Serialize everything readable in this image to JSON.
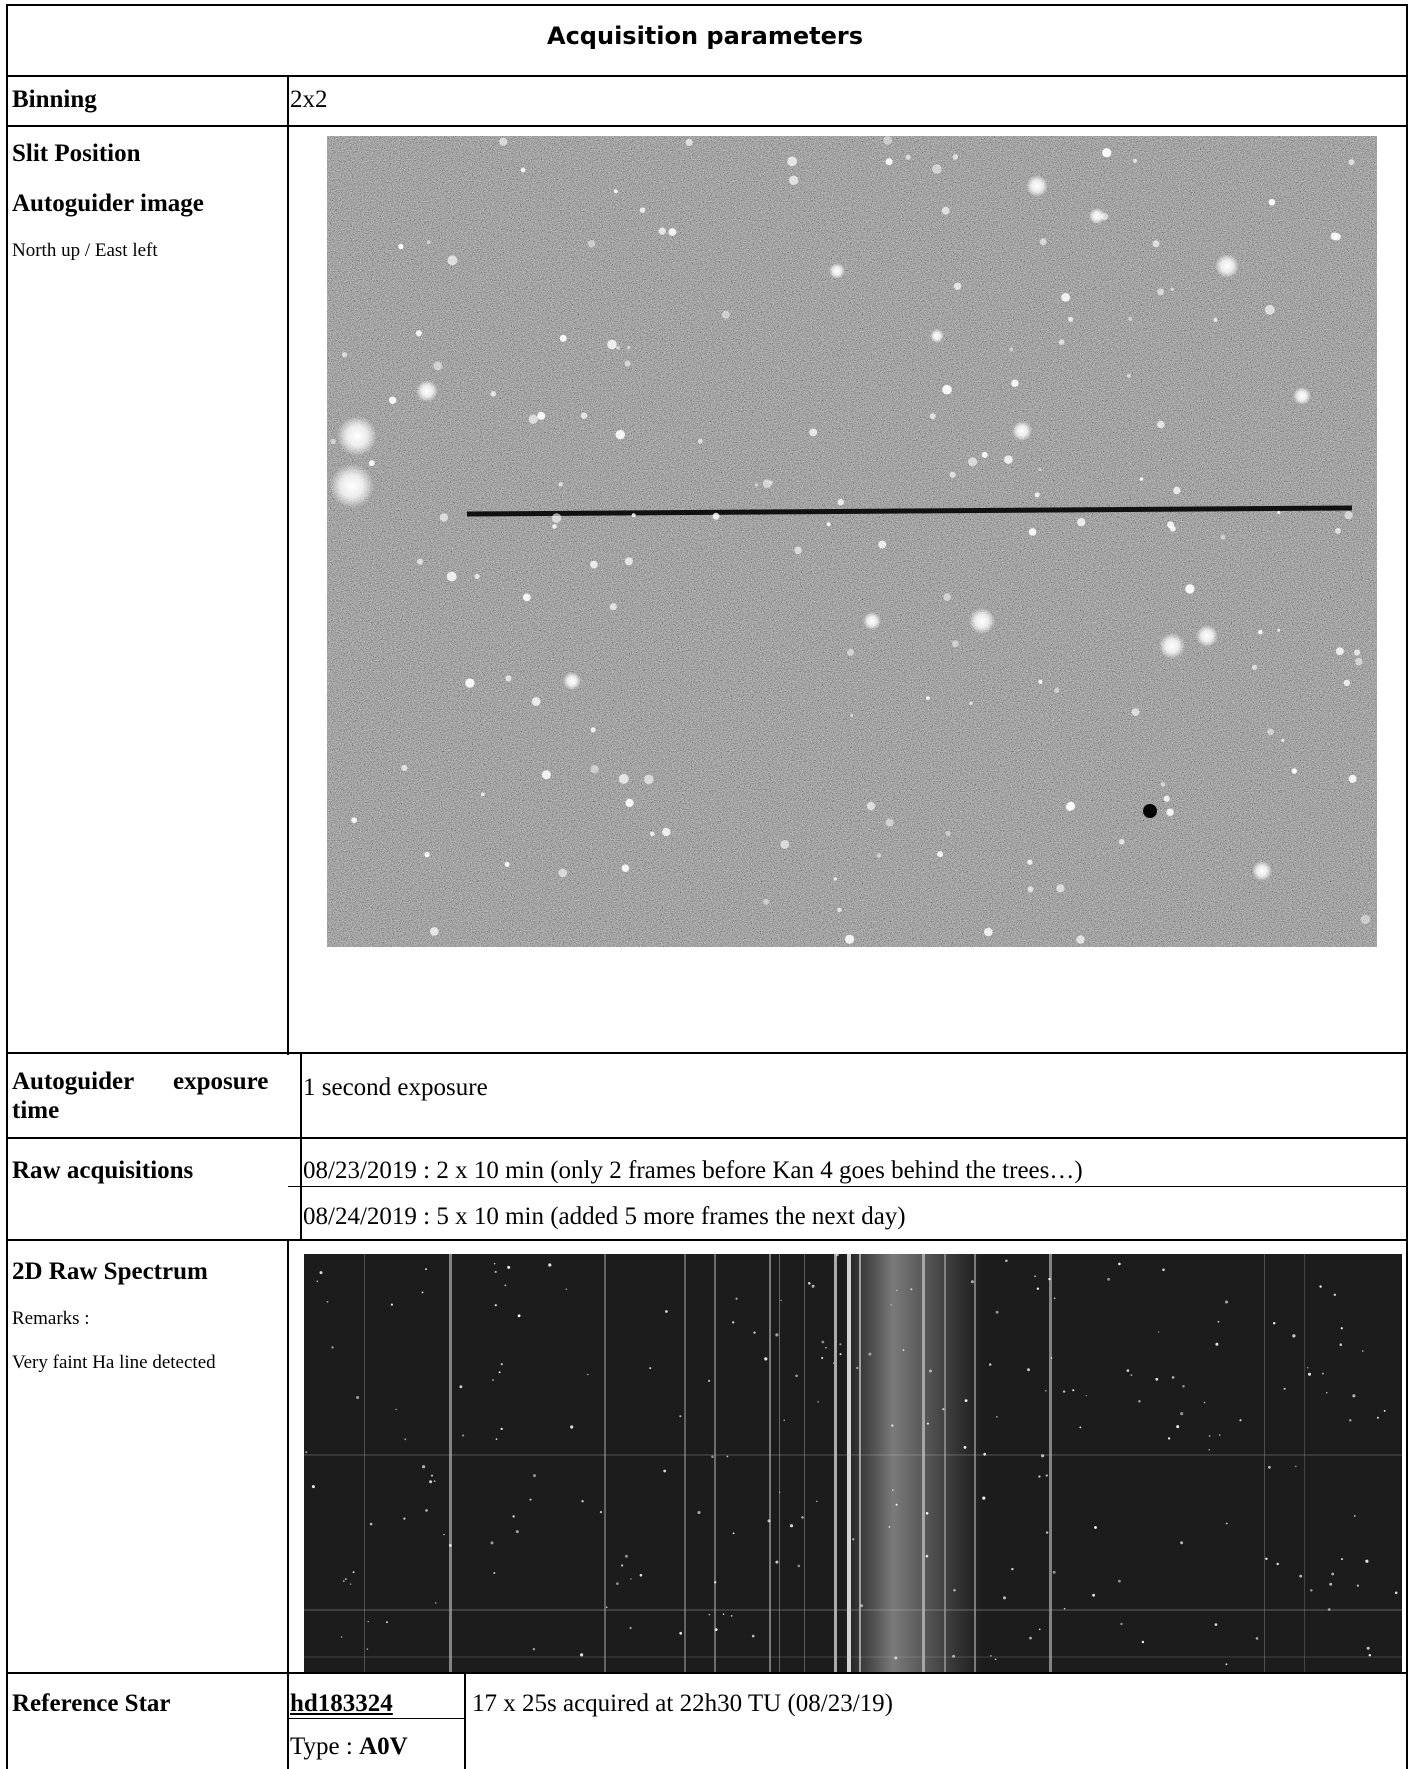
{
  "header": {
    "title": "Acquisition parameters"
  },
  "rows": {
    "binning": {
      "label": "Binning",
      "value": "2x2"
    },
    "slit": {
      "label1": "Slit Position",
      "label2": "Autoguider image",
      "note": "North up / East left"
    },
    "exposure": {
      "label_word1": "Autoguider",
      "label_word2": "exposure",
      "label_word3": "time",
      "value": "1 second exposure"
    },
    "raw": {
      "label": "Raw acquisitions",
      "line1": "08/23/2019 : 2 x 10 min (only 2 frames before Kan 4 goes behind the trees…)",
      "line2": "08/24/2019 : 5 x 10 min (added 5 more frames the next day)"
    },
    "spectrum": {
      "label": "2D Raw Spectrum",
      "remarks": "Remarks :",
      "note": "Very faint Ha line detected"
    },
    "reference": {
      "label": "Reference Star",
      "star": "hd183324",
      "type_prefix": "Type : ",
      "type_value": "A0V",
      "detail": "17 x 25s acquired at 22h30 TU (08/23/19)"
    }
  },
  "colors": {
    "grid": "#000000",
    "image_bg": "#5a5a5a",
    "spectrum_bg": "#1c1c1c"
  }
}
